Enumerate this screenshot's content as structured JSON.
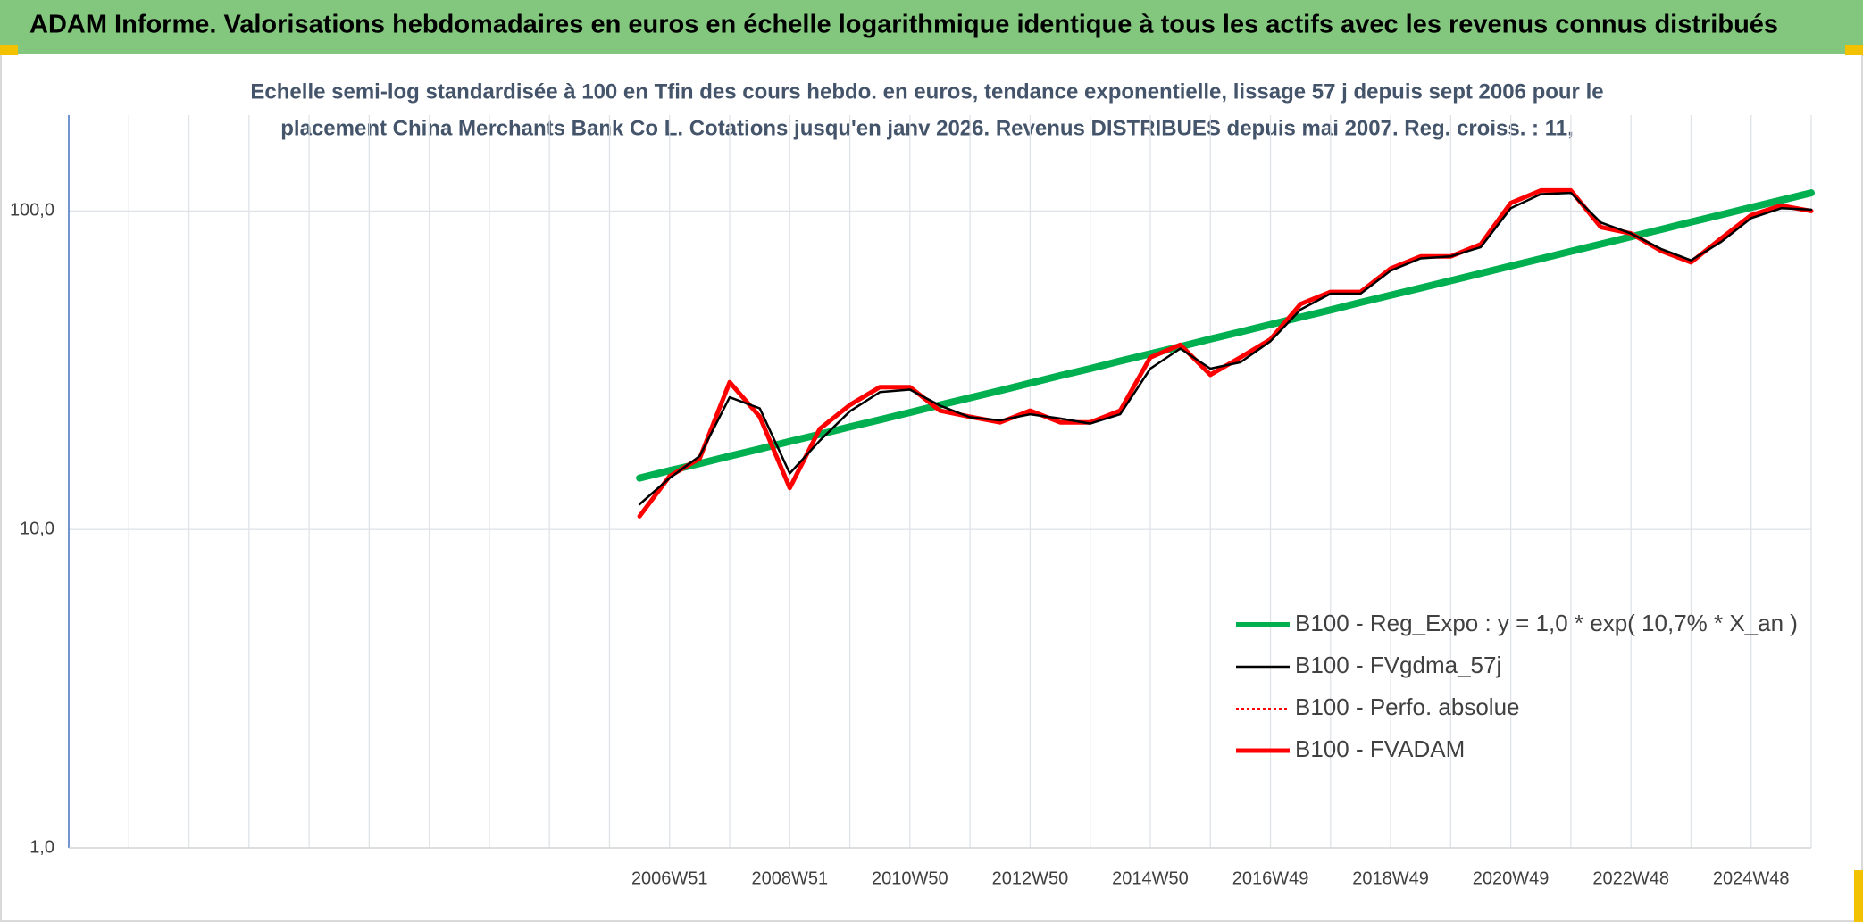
{
  "chart_data": {
    "type": "line",
    "title": "ADAM Informe. Valorisations hebdomadaires en euros en échelle logarithmique identique à tous les actifs avec les revenus connus distribués",
    "subtitle": [
      "Echelle semi-log standardisée à 100 en Tfin des cours hebdo. en euros, tendance exponentielle, lissage 57 j depuis sept 2006 pour le",
      "placement China Merchants Bank Co L. Cotations jusqu'en janv 2026. Revenus DISTRIBUES depuis mai 2007. Reg. croiss. : 11,"
    ],
    "log_scale": true,
    "grid": true,
    "legend": "right",
    "ylim": [
      1,
      200
    ],
    "yticks": [
      {
        "value": 1,
        "label": "1,0"
      },
      {
        "value": 10,
        "label": "10,0"
      },
      {
        "value": 100,
        "label": "100,0"
      }
    ],
    "categories": [
      null,
      null,
      null,
      null,
      null,
      null,
      null,
      null,
      null,
      null,
      null,
      null,
      null,
      null,
      null,
      null,
      null,
      null,
      null,
      null,
      "2006W51",
      null,
      null,
      null,
      "2008W51",
      null,
      null,
      null,
      "2010W50",
      null,
      null,
      null,
      "2012W50",
      null,
      null,
      null,
      "2014W50",
      null,
      null,
      null,
      "2016W49",
      null,
      null,
      null,
      "2018W49",
      null,
      null,
      null,
      "2020W49",
      null,
      null,
      null,
      "2022W48",
      null,
      null,
      null,
      "2024W48",
      null,
      null
    ],
    "series": [
      {
        "name": "B100 - Reg_Expo : y = 1,0 * exp( 10,7% *  X_an )",
        "color": "#00b050",
        "width": 8,
        "style": "solid",
        "values": [
          null,
          null,
          null,
          null,
          null,
          null,
          null,
          null,
          null,
          null,
          null,
          null,
          null,
          null,
          null,
          null,
          null,
          null,
          null,
          14.5,
          15.3,
          16.1,
          17.0,
          17.9,
          18.9,
          19.9,
          21.0,
          22.1,
          23.3,
          24.6,
          25.9,
          27.3,
          28.8,
          30.4,
          32.0,
          33.8,
          35.6,
          37.5,
          39.6,
          41.7,
          44.0,
          46.4,
          48.9,
          51.6,
          54.4,
          57.3,
          60.4,
          63.7,
          67.2,
          70.8,
          74.7,
          78.7,
          83.0,
          87.5,
          92.3,
          97.3,
          102.6,
          108.1,
          114.0
        ]
      },
      {
        "name": "B100 - FVgdma_57j",
        "color": "#000000",
        "width": 2.5,
        "style": "solid",
        "values": [
          null,
          null,
          null,
          null,
          null,
          null,
          null,
          null,
          null,
          null,
          null,
          null,
          null,
          null,
          null,
          null,
          null,
          null,
          null,
          12,
          14.5,
          17,
          26,
          24,
          15,
          19,
          23.5,
          27,
          27.5,
          24.5,
          22.5,
          22,
          23,
          22.3,
          21.5,
          23,
          32,
          37,
          32,
          33.5,
          39,
          49,
          55,
          55,
          65,
          71,
          72,
          77,
          102,
          113,
          114,
          92,
          85,
          76,
          70,
          80,
          95,
          102,
          101
        ]
      },
      {
        "name": "B100 - Perfo. absolue",
        "color": "#ff0000",
        "width": 2,
        "style": "dotted",
        "values": [
          null,
          null,
          null,
          null,
          null,
          null,
          null,
          null,
          null,
          null,
          null,
          null,
          null,
          null,
          null,
          null,
          null,
          null,
          null,
          11,
          14.7,
          16.7,
          29,
          22.6,
          13.5,
          20.7,
          24.6,
          28,
          28,
          23.6,
          22.6,
          21.7,
          23.6,
          21.7,
          21.7,
          23.6,
          34.7,
          38,
          30.6,
          34.7,
          39.5,
          51,
          55.7,
          55.7,
          66,
          72,
          72,
          78.6,
          106,
          116,
          116,
          89,
          85,
          75,
          69,
          82,
          97,
          104,
          100
        ]
      },
      {
        "name": "B100 - FVADAM",
        "color": "#ff0000",
        "width": 5,
        "style": "solid",
        "values": [
          null,
          null,
          null,
          null,
          null,
          null,
          null,
          null,
          null,
          null,
          null,
          null,
          null,
          null,
          null,
          null,
          null,
          null,
          null,
          11,
          14.7,
          16.7,
          29,
          22.6,
          13.5,
          20.7,
          24.6,
          28,
          28,
          23.6,
          22.6,
          21.7,
          23.6,
          21.7,
          21.7,
          23.6,
          34.7,
          38,
          30.6,
          34.7,
          39.5,
          51,
          55.7,
          55.7,
          66,
          72,
          72,
          78.6,
          106,
          116,
          116,
          89,
          85,
          75,
          69,
          82,
          97,
          104,
          100
        ]
      }
    ]
  }
}
